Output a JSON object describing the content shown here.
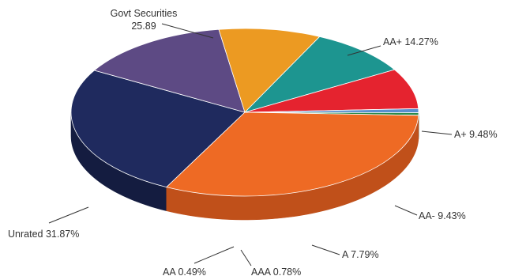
{
  "chart_data": {
    "type": "pie",
    "title": "",
    "three_d": true,
    "slices": [
      {
        "name": "Govt Securities",
        "value": 25.89,
        "label_line1": "Govt Securities",
        "label_line2": "25.89",
        "color": "#1f2a5e",
        "side_color": "#141c40"
      },
      {
        "name": "AA+",
        "value": 14.27,
        "label_line1": "AA+ 14.27%",
        "label_line2": "",
        "color": "#5d4a84",
        "side_color": "#3f3159"
      },
      {
        "name": "A+",
        "value": 9.48,
        "label_line1": "A+ 9.48%",
        "label_line2": "",
        "color": "#ec9a22",
        "side_color": "#a86a12"
      },
      {
        "name": "AA-",
        "value": 9.43,
        "label_line1": "AA- 9.43%",
        "label_line2": "",
        "color": "#1d9590",
        "side_color": "#0f4f4c"
      },
      {
        "name": "A",
        "value": 7.79,
        "label_line1": "A 7.79%",
        "label_line2": "",
        "color": "#e5232f",
        "side_color": "#8e1119"
      },
      {
        "name": "AAA",
        "value": 0.78,
        "label_line1": "AAA 0.78%",
        "label_line2": "",
        "color": "#5a8fd0",
        "side_color": "#2e5a8e"
      },
      {
        "name": "AA",
        "value": 0.49,
        "label_line1": "AA 0.49%",
        "label_line2": "",
        "color": "#2a8a4a",
        "side_color": "#175a2e"
      },
      {
        "name": "Unrated",
        "value": 31.87,
        "label_line1": "Unrated 31.87%",
        "label_line2": "",
        "color": "#ee6a24",
        "side_color": "#c0501a"
      }
    ]
  }
}
